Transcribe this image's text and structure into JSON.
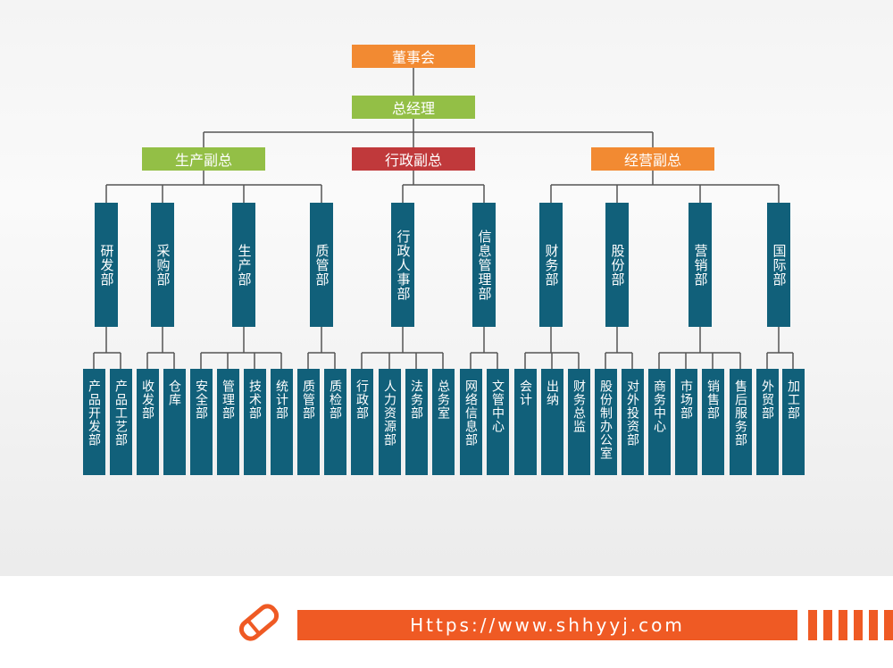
{
  "board": "董事会",
  "ceo": "总经理",
  "vps": [
    {
      "label": "生产副总",
      "departments": [
        {
          "label": "研发部",
          "subs": [
            "产品开发部",
            "产品工艺部"
          ]
        },
        {
          "label": "采购部",
          "subs": [
            "收发部",
            "仓库"
          ]
        },
        {
          "label": "生产部",
          "subs": [
            "安全部",
            "管理部",
            "技术部",
            "统计部"
          ]
        },
        {
          "label": "质管部",
          "subs": [
            "质管部",
            "质检部"
          ]
        }
      ]
    },
    {
      "label": "行政副总",
      "departments": [
        {
          "label": "行政人事部",
          "subs": [
            "行政部",
            "人力资源部",
            "法务部",
            "总务室"
          ]
        },
        {
          "label": "信息管理部",
          "subs": [
            "网络信息部",
            "文管中心"
          ]
        }
      ]
    },
    {
      "label": "经营副总",
      "departments": [
        {
          "label": "财务部",
          "subs": [
            "会计",
            "出纳",
            "财务总监"
          ]
        },
        {
          "label": "股份部",
          "subs": [
            "股份制办公室",
            "对外投资部"
          ]
        },
        {
          "label": "营销部",
          "subs": [
            "商务中心",
            "市场部",
            "销售部",
            "售后服务部"
          ]
        },
        {
          "label": "国际部",
          "subs": [
            "外贸部",
            "加工部"
          ]
        }
      ]
    }
  ],
  "footer": {
    "url": "Https://www.shhyyj.com"
  }
}
